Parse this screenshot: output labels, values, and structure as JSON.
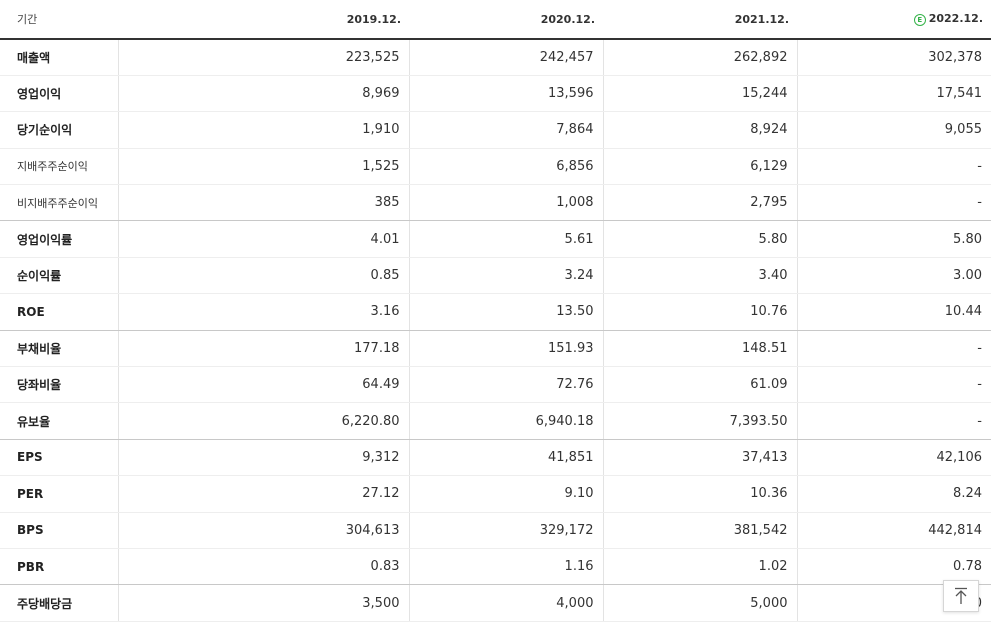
{
  "table": {
    "period_label": "기간",
    "columns": [
      {
        "label": "2019.12.",
        "estimate": false
      },
      {
        "label": "2020.12.",
        "estimate": false
      },
      {
        "label": "2021.12.",
        "estimate": false
      },
      {
        "label": "2022.12.",
        "estimate": true,
        "badge": "E"
      }
    ],
    "rows": [
      {
        "label": "매출액",
        "values": [
          "223,525",
          "242,457",
          "262,892",
          "302,378"
        ]
      },
      {
        "label": "영업이익",
        "values": [
          "8,969",
          "13,596",
          "15,244",
          "17,541"
        ]
      },
      {
        "label": "당기순이익",
        "values": [
          "1,910",
          "7,864",
          "8,924",
          "9,055"
        ]
      },
      {
        "label": "지배주주순이익",
        "values": [
          "1,525",
          "6,856",
          "6,129",
          "-"
        ]
      },
      {
        "label": "비지배주주순이익",
        "values": [
          "385",
          "1,008",
          "2,795",
          "-"
        ]
      },
      {
        "label": "영업이익률",
        "values": [
          "4.01",
          "5.61",
          "5.80",
          "5.80"
        ]
      },
      {
        "label": "순이익률",
        "values": [
          "0.85",
          "3.24",
          "3.40",
          "3.00"
        ]
      },
      {
        "label": "ROE",
        "values": [
          "3.16",
          "13.50",
          "10.76",
          "10.44"
        ]
      },
      {
        "label": "부채비율",
        "values": [
          "177.18",
          "151.93",
          "148.51",
          "-"
        ]
      },
      {
        "label": "당좌비율",
        "values": [
          "64.49",
          "72.76",
          "61.09",
          "-"
        ]
      },
      {
        "label": "유보율",
        "values": [
          "6,220.80",
          "6,940.18",
          "7,393.50",
          "-"
        ]
      },
      {
        "label": "EPS",
        "values": [
          "9,312",
          "41,851",
          "37,413",
          "42,106"
        ]
      },
      {
        "label": "PER",
        "values": [
          "27.12",
          "9.10",
          "10.36",
          "8.24"
        ]
      },
      {
        "label": "BPS",
        "values": [
          "304,613",
          "329,172",
          "381,542",
          "442,814"
        ]
      },
      {
        "label": "PBR",
        "values": [
          "0.83",
          "1.16",
          "1.02",
          "0.78"
        ]
      },
      {
        "label": "주당배당금",
        "values": [
          "3,500",
          "4,000",
          "5,000",
          "5,000"
        ]
      }
    ]
  },
  "top_button": {
    "icon": "arrow-up-icon"
  },
  "colors": {
    "estimate_badge": "#35b34a",
    "header_rule": "#333333",
    "grid": "#e3e3e3"
  }
}
